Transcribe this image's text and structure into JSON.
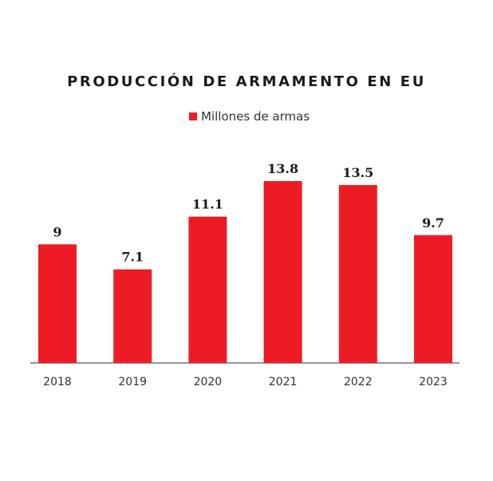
{
  "chart_data": {
    "type": "bar",
    "title": "PRODUCCIÓN DE ARMAMENTO EN EU",
    "xlabel": "",
    "ylabel": "",
    "categories": [
      "2018",
      "2019",
      "2020",
      "2021",
      "2022",
      "2023"
    ],
    "series": [
      {
        "name": "Millones de armas",
        "values": [
          9,
          7.1,
          11.1,
          13.8,
          13.5,
          9.7
        ],
        "value_labels": [
          "9",
          "7.1",
          "11.1",
          "13.8",
          "13.5",
          "9.7"
        ],
        "color": "#ed1c24"
      }
    ],
    "ylim": [
      0,
      14
    ],
    "grid": false,
    "legend_position": "top-center"
  }
}
